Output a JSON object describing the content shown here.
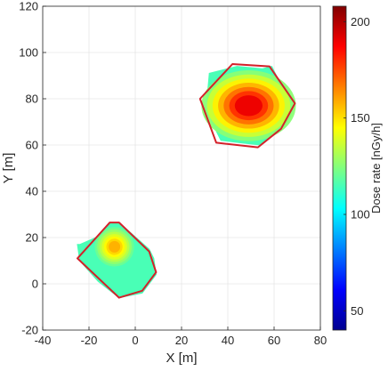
{
  "chart_data": {
    "type": "heatmap",
    "xlabel": "X [m]",
    "ylabel": "Y [m]",
    "xlim": [
      -40,
      80
    ],
    "ylim": [
      -20,
      120
    ],
    "xticks": [
      -40,
      -20,
      0,
      20,
      40,
      60,
      80
    ],
    "yticks": [
      -20,
      0,
      20,
      40,
      60,
      80,
      100,
      120
    ],
    "grid": true,
    "colorbar": {
      "label": "Dose rate [nGy/h]",
      "range": [
        40,
        208
      ],
      "ticks": [
        50,
        100,
        150,
        200
      ],
      "colormap": "jet"
    },
    "regions": [
      {
        "boundary": [
          [
            -25,
            11
          ],
          [
            -11,
            26.5
          ],
          [
            -7,
            26.5
          ],
          [
            6,
            14
          ],
          [
            9,
            5
          ],
          [
            3,
            -3
          ],
          [
            -7,
            -6
          ],
          [
            -25,
            11
          ]
        ],
        "field_polygon": [
          [
            -25,
            17
          ],
          [
            -24,
            10
          ],
          [
            -16,
            1
          ],
          [
            -7,
            -6
          ],
          [
            3,
            -4
          ],
          [
            9,
            4
          ],
          [
            8,
            11
          ],
          [
            6,
            15
          ],
          [
            -7,
            26.5
          ],
          [
            -11,
            26.5
          ],
          [
            -17,
            20
          ],
          [
            -24,
            17
          ]
        ],
        "peaks": [
          {
            "x": -9,
            "y": 16,
            "value": 158,
            "rx": 5,
            "ry": 5
          }
        ]
      },
      {
        "boundary": [
          [
            28,
            80
          ],
          [
            35,
            61
          ],
          [
            53,
            59
          ],
          [
            63,
            67
          ],
          [
            69,
            78
          ],
          [
            58,
            94
          ],
          [
            42,
            95
          ],
          [
            28,
            80
          ]
        ],
        "field_polygon": [
          [
            31,
            80
          ],
          [
            32,
            91
          ],
          [
            44,
            94
          ],
          [
            55,
            93
          ],
          [
            59,
            94
          ],
          [
            62,
            88
          ],
          [
            69,
            79
          ],
          [
            67,
            72
          ],
          [
            62,
            67
          ],
          [
            54,
            60
          ],
          [
            45,
            61
          ],
          [
            37,
            62
          ],
          [
            33,
            70
          ]
        ],
        "peaks": [
          {
            "x": 49,
            "y": 77,
            "value": 190,
            "rx": 12,
            "ry": 9
          }
        ]
      }
    ],
    "boundary_color": "#d4202a"
  }
}
